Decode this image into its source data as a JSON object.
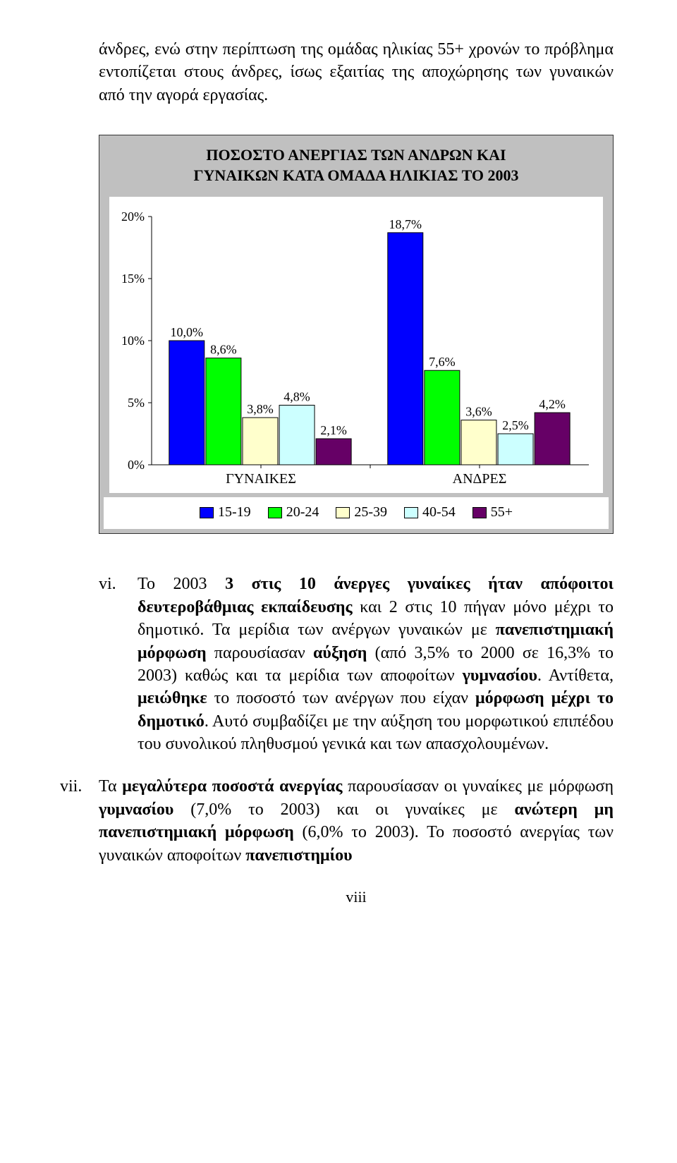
{
  "intro_paragraph": "άνδρες, ενώ στην περίπτωση της ομάδας ηλικίας 55+ χρονών το πρόβλημα εντοπίζεται στους άνδρες, ίσως εξαιτίας της αποχώρησης των γυναικών από την αγορά εργασίας.",
  "chart": {
    "type": "bar",
    "title": "ΠΟΣΟΣΤΟ ΑΝΕΡΓΙΑΣ ΤΩΝ ΑΝΔΡΩΝ ΚΑΙ\nΓΥΝΑΙΚΩΝ ΚΑΤΑ ΟΜΑΔΑ ΗΛΙΚΙΑΣ ΤΟ 2003",
    "y_axis": {
      "min": 0,
      "max": 20,
      "ticks": [
        0,
        5,
        10,
        15,
        20
      ],
      "tick_labels": [
        "0%",
        "5%",
        "10%",
        "15%",
        "20%"
      ]
    },
    "x_categories": [
      "ΓΥΝΑΙΚΕΣ",
      "ΑΝΔΡΕΣ"
    ],
    "series": [
      {
        "name": "15-19",
        "color": "#0000ff",
        "values": [
          10.0,
          18.7
        ],
        "labels": [
          "10,0%",
          "18,7%"
        ]
      },
      {
        "name": "20-24",
        "color": "#00ff00",
        "values": [
          8.6,
          7.6
        ],
        "labels": [
          "8,6%",
          "7,6%"
        ]
      },
      {
        "name": "25-39",
        "color": "#ffffcc",
        "values": [
          3.8,
          3.6
        ],
        "labels": [
          "3,8%",
          "3,6%"
        ]
      },
      {
        "name": "40-54",
        "color": "#ccffff",
        "values": [
          4.8,
          2.5
        ],
        "labels": [
          "4,8%",
          "2,5%"
        ]
      },
      {
        "name": "55+",
        "color": "#660066",
        "values": [
          2.1,
          4.2
        ],
        "labels": [
          "2,1%",
          "4,2%"
        ]
      }
    ],
    "border_color": "#000000",
    "background_color": "#c0c0c0",
    "plot_background": "#ffffff",
    "grid_color": "#000000",
    "tick_font_size": 18,
    "label_font_size": 18,
    "category_font_size": 20
  },
  "list": {
    "items": [
      {
        "marker": "vi.",
        "html": "Το 2003 <b>3 στις 10 άνεργες γυναίκες ήταν απόφοιτοι δευτεροβάθμιας εκπαίδευσης</b> και 2 στις 10 πήγαν μόνο μέχρι το δημοτικό. Τα μερίδια των ανέργων γυναικών με <b>πανεπιστημιακή μόρφωση</b> παρουσίασαν <b>αύξηση</b> (από 3,5% το 2000 σε 16,3% το 2003) καθώς και τα μερίδια των αποφοίτων <b>γυμνασίου</b>. Αντίθετα, <b>μειώθηκε</b> το ποσοστό των ανέργων που είχαν <b>μόρφωση μέχρι το δημοτικό</b>. Αυτό συμβαδίζει με την αύξηση του μορφωτικού επιπέδου του συνολικού πληθυσμού γενικά και των απασχολουμένων."
      },
      {
        "marker": "vii.",
        "html": "Τα <b>μεγαλύτερα ποσοστά ανεργίας</b> παρουσίασαν οι γυναίκες με μόρφωση <b>γυμνασίου</b> (7,0% το 2003) και οι γυναίκες με <b>ανώτερη μη πανεπιστημιακή μόρφωση</b> (6,0% το 2003). Το ποσοστό ανεργίας των γυναικών αποφοίτων <b>πανεπιστημίου</b>"
      }
    ]
  },
  "footer": "viii"
}
